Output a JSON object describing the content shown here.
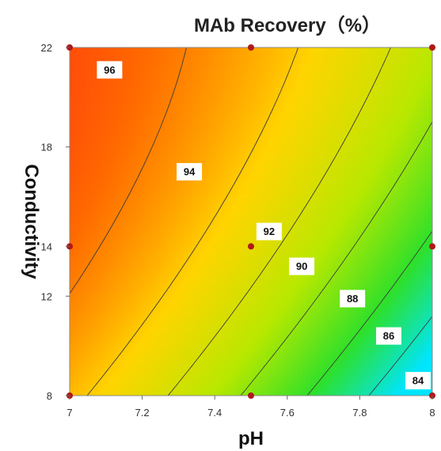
{
  "chart_data": {
    "type": "contour",
    "title": "MAb Recovery（%）",
    "xlabel": "pH",
    "ylabel": "Conductivity",
    "xlim": [
      7,
      8
    ],
    "ylim": [
      8,
      22
    ],
    "x_ticks": [
      {
        "value": 7,
        "label": "7"
      },
      {
        "value": 7.2,
        "label": "7.2"
      },
      {
        "value": 7.4,
        "label": "7.4"
      },
      {
        "value": 7.6,
        "label": "7.6"
      },
      {
        "value": 7.8,
        "label": "7.8"
      },
      {
        "value": 8,
        "label": "8"
      }
    ],
    "y_ticks": [
      {
        "value": 8,
        "label": "8"
      },
      {
        "value": 12,
        "label": "12"
      },
      {
        "value": 14,
        "label": "14"
      },
      {
        "value": 18,
        "label": "18"
      },
      {
        "value": 22,
        "label": "22"
      }
    ],
    "design_points": [
      {
        "x": 7,
        "y": 22
      },
      {
        "x": 7.5,
        "y": 22
      },
      {
        "x": 8,
        "y": 22
      },
      {
        "x": 7,
        "y": 14
      },
      {
        "x": 7.5,
        "y": 14
      },
      {
        "x": 8,
        "y": 14
      },
      {
        "x": 7,
        "y": 8
      },
      {
        "x": 7.5,
        "y": 8
      },
      {
        "x": 8,
        "y": 8
      }
    ],
    "point_color": "#b01818",
    "contours": [
      {
        "level": 96,
        "label": "96",
        "label_at": {
          "x": 7.11,
          "y": 21.1
        }
      },
      {
        "level": 94,
        "label": "94",
        "label_at": {
          "x": 7.33,
          "y": 17.0
        }
      },
      {
        "level": 92,
        "label": "92",
        "label_at": {
          "x": 7.55,
          "y": 14.6
        }
      },
      {
        "level": 90,
        "label": "90",
        "label_at": {
          "x": 7.64,
          "y": 13.2
        }
      },
      {
        "level": 88,
        "label": "88",
        "label_at": {
          "x": 7.78,
          "y": 11.9
        }
      },
      {
        "level": 86,
        "label": "86",
        "label_at": {
          "x": 7.88,
          "y": 10.4
        }
      },
      {
        "level": 84,
        "label": "84",
        "label_at": {
          "x": 7.97,
          "y": 8.6
        }
      }
    ],
    "color_scale": [
      "#00e5ff",
      "#2ee02a",
      "#b7e800",
      "#ffd400",
      "#ff6a00",
      "#ff1a1a"
    ]
  }
}
